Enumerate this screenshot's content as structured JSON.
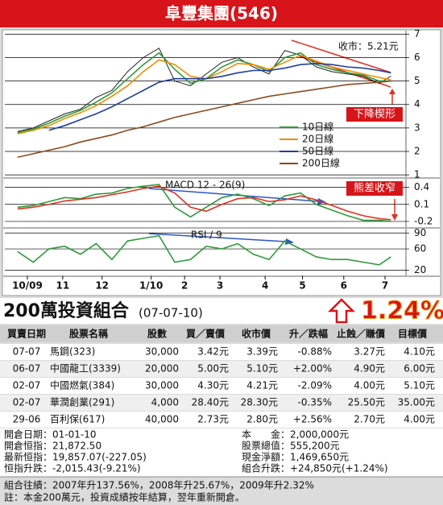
{
  "header": {
    "title": "阜豐集團(546)"
  },
  "chart_data": [
    {
      "type": "line",
      "close_label": "收市：5.21元",
      "annotation": "下降楔形",
      "x": [
        2,
        6,
        10,
        14,
        18,
        22,
        26,
        30,
        34,
        38,
        42,
        46,
        50,
        54,
        58,
        62,
        66,
        70,
        74,
        78,
        82,
        86,
        90,
        94,
        97
      ],
      "xlim": [
        0,
        100
      ],
      "xticks": [
        {
          "value": 4.5,
          "label": "10/09"
        },
        {
          "value": 13.5,
          "label": "11"
        },
        {
          "value": 23.5,
          "label": "12"
        },
        {
          "value": 36,
          "label": "1/10"
        },
        {
          "value": 44.5,
          "label": "2"
        },
        {
          "value": 53.5,
          "label": "3"
        },
        {
          "value": 65,
          "label": "4"
        },
        {
          "value": 74.5,
          "label": "5"
        },
        {
          "value": 85,
          "label": "6"
        },
        {
          "value": 95.5,
          "label": "7"
        }
      ],
      "ylim": [
        0.9,
        7.15
      ],
      "yticks": [
        1,
        2,
        3,
        4,
        5,
        6,
        7
      ],
      "grid": true,
      "legend": "right",
      "series": [
        {
          "color": "#222222",
          "values": [
            2.85,
            3.0,
            3.3,
            3.6,
            3.8,
            4.3,
            4.6,
            5.4,
            6.0,
            6.4,
            5.0,
            4.8,
            5.3,
            5.8,
            6.0,
            5.6,
            5.3,
            6.3,
            6.1,
            5.6,
            5.4,
            5.3,
            5.2,
            4.9,
            5.21
          ]
        },
        {
          "name": "10日線",
          "color": "#2e9a3a",
          "values": [
            2.8,
            2.95,
            3.2,
            3.5,
            3.75,
            4.1,
            4.5,
            5.1,
            5.7,
            6.2,
            5.5,
            4.9,
            5.1,
            5.6,
            5.9,
            5.7,
            5.4,
            6.0,
            6.2,
            5.7,
            5.5,
            5.35,
            5.25,
            5.0,
            5.0
          ]
        },
        {
          "name": "20日線",
          "color": "#f08c00",
          "values": [
            2.75,
            2.9,
            3.1,
            3.4,
            3.65,
            3.95,
            4.35,
            4.8,
            5.4,
            5.9,
            5.7,
            5.2,
            5.1,
            5.4,
            5.75,
            5.7,
            5.5,
            5.8,
            6.1,
            5.85,
            5.6,
            5.45,
            5.3,
            5.15,
            5.05
          ]
        },
        {
          "name": "50日線",
          "color": "#1f3f9c",
          "values": [
            null,
            null,
            2.9,
            3.1,
            3.35,
            3.6,
            3.9,
            4.25,
            4.6,
            4.95,
            5.1,
            5.1,
            5.1,
            5.2,
            5.35,
            5.45,
            5.45,
            5.55,
            5.7,
            5.75,
            5.7,
            5.6,
            5.55,
            5.45,
            5.35
          ]
        },
        {
          "name": "200日線",
          "color": "#8b4a1c",
          "values": [
            1.75,
            1.9,
            2.05,
            2.2,
            2.4,
            2.55,
            2.7,
            2.9,
            3.05,
            3.25,
            3.45,
            3.6,
            3.75,
            3.9,
            4.05,
            4.2,
            4.35,
            4.45,
            4.55,
            4.65,
            4.75,
            4.85,
            4.9,
            4.95,
            5.0
          ]
        }
      ]
    },
    {
      "type": "line",
      "title": "MACD 12 - 26(9)",
      "annotation": "熊差收窄",
      "x": [
        2,
        6,
        10,
        14,
        18,
        22,
        26,
        30,
        34,
        38,
        42,
        46,
        50,
        54,
        58,
        62,
        66,
        70,
        74,
        78,
        82,
        86,
        90,
        94,
        97
      ],
      "xlim": [
        0,
        100
      ],
      "ylim": [
        -0.3,
        0.55
      ],
      "yticks": [
        0.4,
        0.1,
        -0.2
      ],
      "grid": true,
      "series": [
        {
          "color": "#2e9a3a",
          "values": [
            0.05,
            0.08,
            0.15,
            0.22,
            0.2,
            0.28,
            0.3,
            0.38,
            0.42,
            0.45,
            0.05,
            -0.12,
            0.05,
            0.22,
            0.28,
            0.2,
            0.08,
            0.25,
            0.3,
            0.1,
            0.0,
            -0.1,
            -0.18,
            -0.18,
            -0.2
          ]
        },
        {
          "color": "#e03020",
          "values": [
            0.02,
            0.05,
            0.1,
            0.16,
            0.19,
            0.22,
            0.27,
            0.32,
            0.38,
            0.42,
            0.3,
            0.05,
            -0.02,
            0.1,
            0.2,
            0.22,
            0.15,
            0.18,
            0.25,
            0.18,
            0.08,
            -0.02,
            -0.1,
            -0.15,
            -0.17
          ]
        }
      ]
    },
    {
      "type": "line",
      "title": "RSI / 9",
      "x": [
        2,
        6,
        10,
        14,
        18,
        22,
        26,
        30,
        34,
        38,
        42,
        46,
        50,
        54,
        58,
        62,
        66,
        70,
        74,
        78,
        82,
        86,
        90,
        94,
        97
      ],
      "xlim": [
        0,
        100
      ],
      "ylim": [
        10,
        98
      ],
      "yticks": [
        90,
        60,
        20
      ],
      "grid": true,
      "series": [
        {
          "color": "#2e9a3a",
          "values": [
            55,
            35,
            60,
            65,
            50,
            70,
            40,
            75,
            80,
            85,
            35,
            40,
            65,
            60,
            70,
            50,
            40,
            75,
            60,
            45,
            40,
            40,
            35,
            30,
            45
          ]
        }
      ]
    }
  ],
  "portfolio": {
    "title": "200萬投資組合",
    "date": "(07-07-10)",
    "change": "1.24%",
    "table": {
      "header": [
        "買賣日期",
        "股票名稱",
        "股數",
        "買／賣價",
        "收市價",
        "升／跌幅",
        "止蝕／賺價",
        "目標價"
      ],
      "rows": [
        [
          "07-07",
          "馬鋼(323)",
          "30,000",
          "3.42元",
          "3.39元",
          "-0.88%",
          "3.27元",
          "4.10元"
        ],
        [
          "06-07",
          "中國龍工(3339)",
          "20,000",
          "5.00元",
          "5.10元",
          "+2.00%",
          "4.90元",
          "6.00元"
        ],
        [
          "02-07",
          "中國燃氣(384)",
          "30,000",
          "4.30元",
          "4.21元",
          "-2.09%",
          "4.00元",
          "5.10元"
        ],
        [
          "02-07",
          "華潤創業(291)",
          "4,000",
          "28.40元",
          "28.30元",
          "-0.35%",
          "25.50元",
          "35.00元"
        ],
        [
          "29-06",
          "百利保(617)",
          "40,000",
          "2.73元",
          "2.80元",
          "+2.56%",
          "2.70元",
          "4.00元"
        ]
      ]
    },
    "summary_left": [
      "開倉日期：01-01-10",
      "開倉恒指：21,872.50",
      "最新恒指：19,857.07(-227.05)",
      "恒指升跌：-2,015.43(-9.21%)"
    ],
    "summary_right": [
      "本　　金：2,000,000元",
      "股票總值：555,200元",
      "現金淨額：1,469,650元",
      "組合升跌：+24,850元(+1.24%)"
    ],
    "notes": [
      "組合往績：2007年升137.56%，2008年升25.67%，2009年升2.32%",
      "註：本金200萬元，投資成績按年結算，翌年重新開倉。"
    ]
  }
}
